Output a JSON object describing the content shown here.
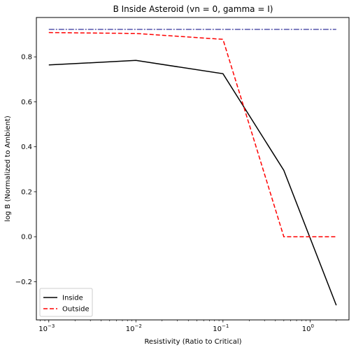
{
  "chart_data": {
    "type": "line",
    "title": "B Inside Asteroid (vn = 0, gamma = I)",
    "xlabel": "Resistivity (Ratio to Critical)",
    "ylabel": "log B (Normalized to Ambient)",
    "xscale": "log",
    "xlim": [
      0.00072,
      2.8
    ],
    "ylim": [
      -0.37,
      0.975
    ],
    "x_ticks": [
      {
        "value": 0.001,
        "base": "10",
        "exp": "−3"
      },
      {
        "value": 0.01,
        "base": "10",
        "exp": "−2"
      },
      {
        "value": 0.1,
        "base": "10",
        "exp": "−1"
      },
      {
        "value": 1,
        "base": "10",
        "exp": "0"
      }
    ],
    "y_ticks": [
      {
        "value": -0.2,
        "label": "−0.2"
      },
      {
        "value": 0.0,
        "label": "0.0"
      },
      {
        "value": 0.2,
        "label": "0.2"
      },
      {
        "value": 0.4,
        "label": "0.4"
      },
      {
        "value": 0.6,
        "label": "0.6"
      },
      {
        "value": 0.8,
        "label": "0.8"
      }
    ],
    "grid": false,
    "legend_position": "lower-left",
    "series": [
      {
        "name": "Inside",
        "color": "#000000",
        "style": "solid",
        "in_legend": true,
        "x": [
          0.001,
          0.01,
          0.1,
          0.5,
          2.0
        ],
        "y": [
          0.764,
          0.784,
          0.725,
          0.295,
          -0.305
        ]
      },
      {
        "name": "Outside",
        "color": "#ff0000",
        "style": "dashed",
        "in_legend": true,
        "x": [
          0.001,
          0.01,
          0.1,
          0.5,
          2.0
        ],
        "y": [
          0.908,
          0.904,
          0.878,
          0.0,
          0.0
        ]
      },
      {
        "name": "",
        "color": "#000080",
        "style": "dashdot",
        "in_legend": false,
        "x": [
          0.001,
          2.0
        ],
        "y": [
          0.922,
          0.922
        ]
      }
    ]
  }
}
